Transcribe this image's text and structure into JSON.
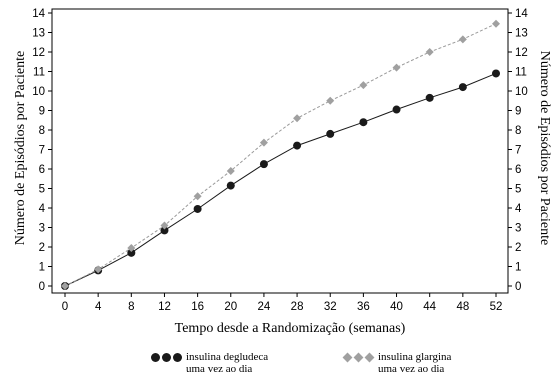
{
  "chart_data": {
    "type": "line",
    "xlabel": "Tempo desde a Randomização (semanas)",
    "ylabel": "Número de Episódios por Paciente",
    "ylabel_right": "Número de Episódios por Paciente",
    "xlim": [
      0,
      52
    ],
    "ylim": [
      0,
      14
    ],
    "x_ticks": [
      "0",
      "4",
      "8",
      "12",
      "16",
      "20",
      "24",
      "28",
      "32",
      "36",
      "40",
      "44",
      "48",
      "52"
    ],
    "y_ticks": [
      "0",
      "1",
      "2",
      "3",
      "4",
      "5",
      "6",
      "7",
      "8",
      "9",
      "10",
      "11",
      "12",
      "13",
      "14"
    ],
    "x": [
      0,
      4,
      8,
      12,
      16,
      20,
      24,
      28,
      32,
      36,
      40,
      44,
      48,
      52
    ],
    "series": [
      {
        "name": "insulina degludeca uma vez ao dia",
        "legend_line1": "insulina degludeca",
        "legend_line2": "uma vez ao dia",
        "color": "#1a1a1a",
        "line_style": "solid",
        "marker": "circle",
        "values": [
          0,
          0.8,
          1.7,
          2.85,
          3.95,
          5.15,
          6.25,
          7.2,
          7.8,
          8.4,
          9.05,
          9.65,
          10.2,
          10.9
        ]
      },
      {
        "name": "insulina glargina uma vez ao dia",
        "legend_line1": "insulina glargina",
        "legend_line2": "uma vez ao dia",
        "color": "#a0a0a0",
        "line_style": "dashed",
        "marker": "diamond",
        "values": [
          0,
          0.85,
          1.95,
          3.1,
          4.6,
          5.9,
          7.35,
          8.6,
          9.5,
          10.3,
          11.2,
          12.0,
          12.65,
          13.45
        ]
      }
    ]
  }
}
